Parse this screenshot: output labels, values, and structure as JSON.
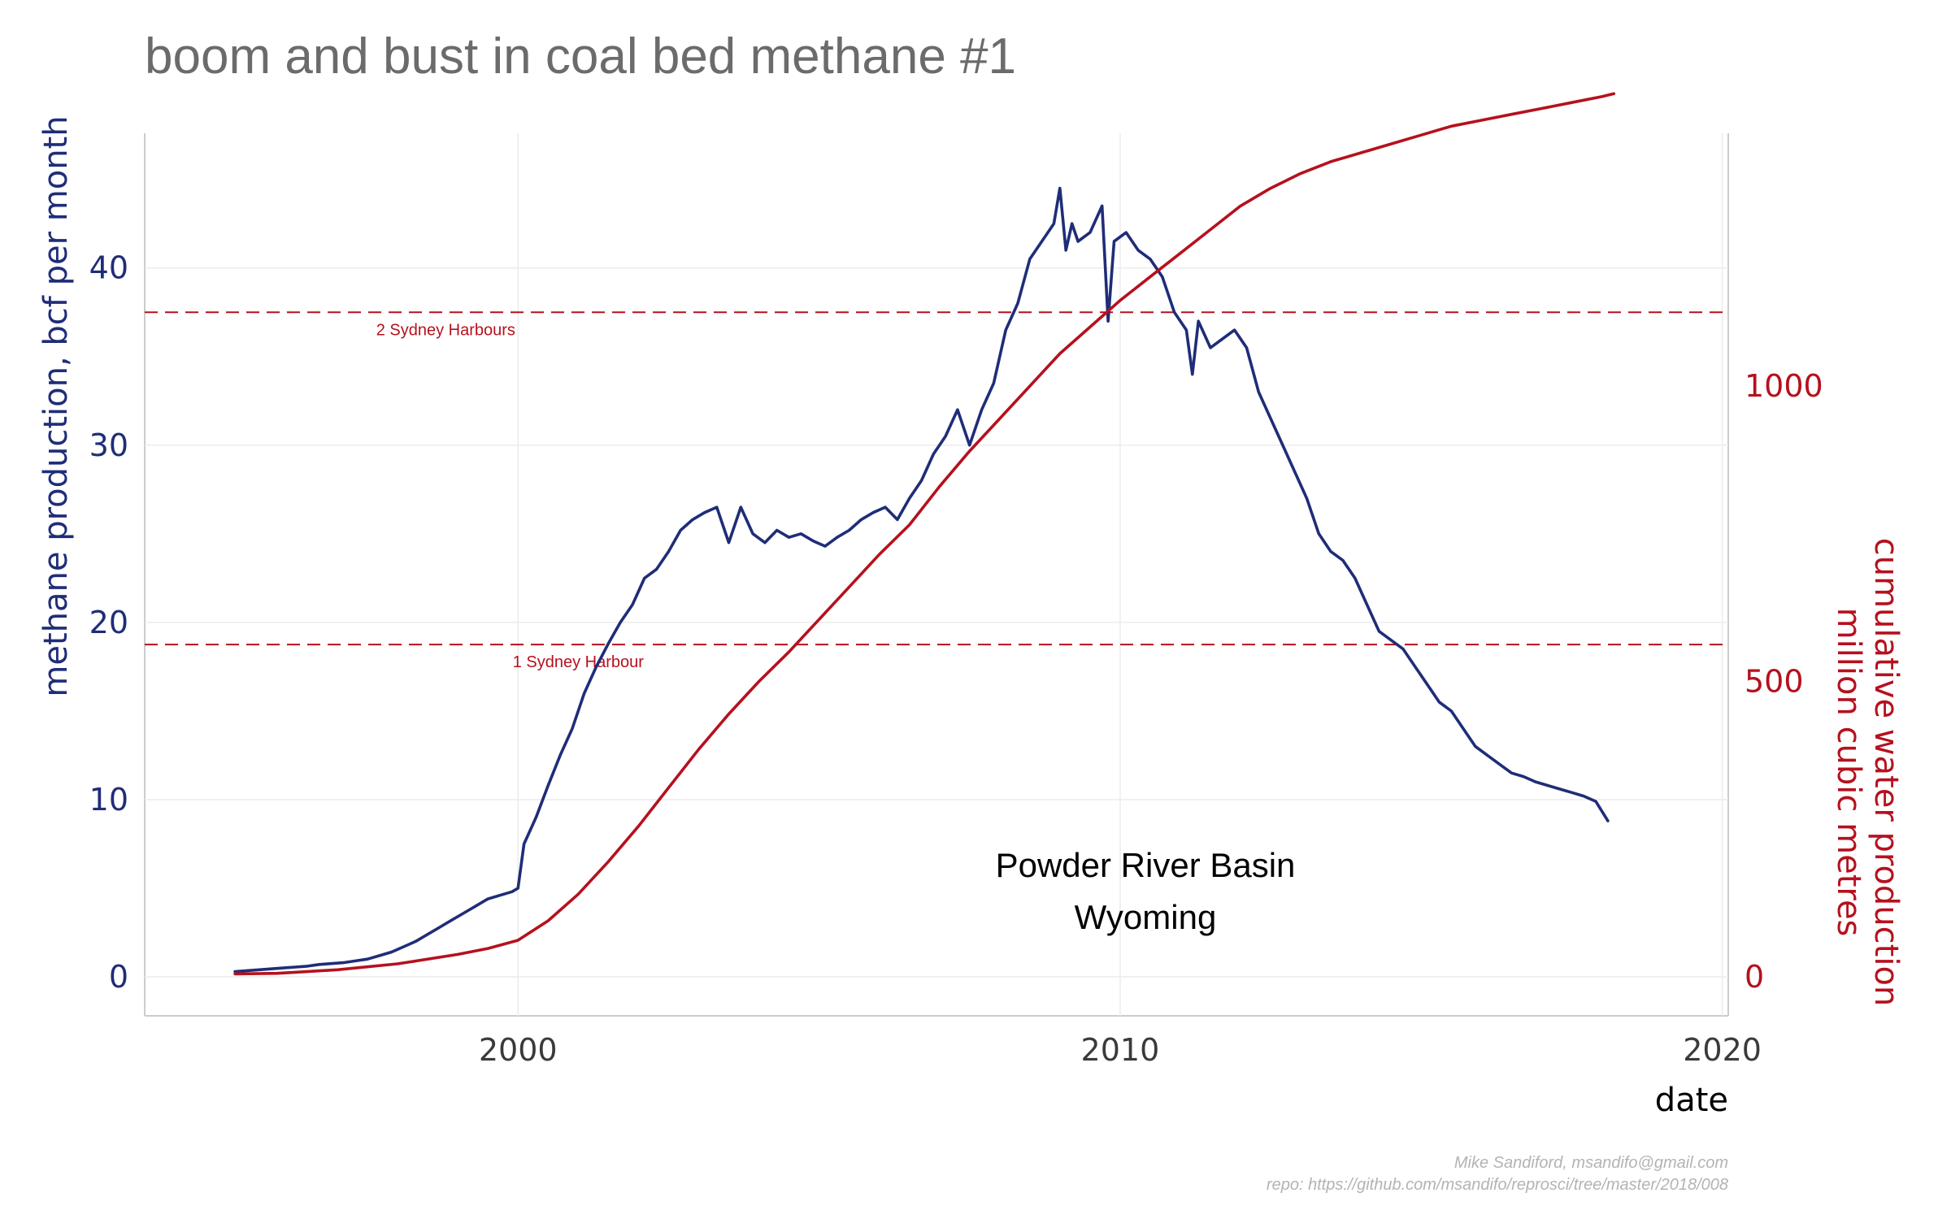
{
  "chart_data": {
    "type": "line",
    "title": "boom and bust in coal bed methane #1",
    "xlabel": "date",
    "ylabel_left": "methane production, bcf per month",
    "ylabel_right_lines": [
      "cumulative water production",
      "million cubic metres"
    ],
    "xlim": [
      1993.8,
      2020.1
    ],
    "ylim_left": [
      -2.2,
      47.6
    ],
    "ylim_right": [
      -66,
      1428
    ],
    "x_ticks": [
      2000,
      2010,
      2020
    ],
    "y_ticks_left": [
      0,
      10,
      20,
      30,
      40
    ],
    "y_ticks_right": [
      0,
      500,
      1000
    ],
    "grid": true,
    "reference_lines": [
      {
        "y": 18.75,
        "label": "1 Sydney Harbour",
        "label_x": 2001.0
      },
      {
        "y": 37.5,
        "label": "2 Sydney Harbours",
        "label_x": 1998.8
      }
    ],
    "annotation_lines": [
      "Powder River Basin",
      "Wyoming"
    ],
    "annotation_x": 2010.4,
    "annotation_y": [
      6.4,
      3.4
    ],
    "caption_lines": [
      "Mike Sandiford, msandifo@gmail.com",
      "repo: https://github.com/msandifo/reprosci/tree/master/2018/008"
    ],
    "colors": {
      "methane": "#1f2d78",
      "water": "#b5111e",
      "reference": "#b5111e",
      "grid": "#ececec"
    },
    "series": [
      {
        "axis": "left",
        "x": [
          1995.3,
          1995.5,
          1995.7,
          1995.9,
          1996.1,
          1996.3,
          1996.5,
          1996.7,
          1996.9,
          1997.1,
          1997.3,
          1997.5,
          1997.7,
          1997.9,
          1998.1,
          1998.3,
          1998.5,
          1998.7,
          1998.9,
          1999.1,
          1999.3,
          1999.5,
          1999.7,
          1999.9,
          2000.0,
          2000.1,
          2000.3,
          2000.5,
          2000.7,
          2000.9,
          2001.1,
          2001.3,
          2001.5,
          2001.7,
          2001.9,
          2002.1,
          2002.3,
          2002.5,
          2002.7,
          2002.9,
          2003.1,
          2003.3,
          2003.5,
          2003.7,
          2003.9,
          2004.1,
          2004.3,
          2004.5,
          2004.7,
          2004.9,
          2005.1,
          2005.3,
          2005.5,
          2005.7,
          2005.9,
          2006.1,
          2006.3,
          2006.5,
          2006.7,
          2006.9,
          2007.1,
          2007.3,
          2007.5,
          2007.7,
          2007.9,
          2008.1,
          2008.3,
          2008.5,
          2008.7,
          2008.9,
          2009.0,
          2009.1,
          2009.2,
          2009.3,
          2009.5,
          2009.7,
          2009.8,
          2009.9,
          2010.1,
          2010.3,
          2010.5,
          2010.7,
          2010.9,
          2011.1,
          2011.2,
          2011.3,
          2011.5,
          2011.7,
          2011.9,
          2012.1,
          2012.3,
          2012.5,
          2012.7,
          2012.9,
          2013.1,
          2013.3,
          2013.5,
          2013.7,
          2013.9,
          2014.1,
          2014.3,
          2014.5,
          2014.7,
          2014.9,
          2015.1,
          2015.3,
          2015.5,
          2015.7,
          2015.9,
          2016.1,
          2016.3,
          2016.5,
          2016.7,
          2016.9,
          2017.1,
          2017.3,
          2017.5,
          2017.7,
          2017.9,
          2018.1
        ],
        "y": [
          0.3,
          0.35,
          0.4,
          0.45,
          0.5,
          0.55,
          0.6,
          0.7,
          0.75,
          0.8,
          0.9,
          1.0,
          1.2,
          1.4,
          1.7,
          2.0,
          2.4,
          2.8,
          3.2,
          3.6,
          4.0,
          4.4,
          4.6,
          4.8,
          5.0,
          7.5,
          9.0,
          10.8,
          12.5,
          14.0,
          16.0,
          17.5,
          18.8,
          20.0,
          21.0,
          22.5,
          23.0,
          24.0,
          25.2,
          25.8,
          26.2,
          26.5,
          24.5,
          26.5,
          25.0,
          24.5,
          25.2,
          24.8,
          25.0,
          24.6,
          24.3,
          24.8,
          25.2,
          25.8,
          26.2,
          26.5,
          25.8,
          27.0,
          28.0,
          29.5,
          30.5,
          32.0,
          30.0,
          32.0,
          33.5,
          36.5,
          38.0,
          40.5,
          41.5,
          42.5,
          44.5,
          41.0,
          42.5,
          41.5,
          42.0,
          43.5,
          37.0,
          41.5,
          42.0,
          41.0,
          40.5,
          39.5,
          37.5,
          36.5,
          34.0,
          37.0,
          35.5,
          36.0,
          36.5,
          35.5,
          33.0,
          31.5,
          30.0,
          28.5,
          27.0,
          25.0,
          24.0,
          23.5,
          22.5,
          21.0,
          19.5,
          19.0,
          18.5,
          17.5,
          16.5,
          15.5,
          15.0,
          14.0,
          13.0,
          12.5,
          12.0,
          11.5,
          11.3,
          11.0,
          10.8,
          10.6,
          10.4,
          10.2,
          9.9,
          8.8
        ]
      },
      {
        "axis": "right",
        "x": [
          1995.3,
          1996.0,
          1997.0,
          1998.0,
          1999.0,
          1999.5,
          2000.0,
          2000.5,
          2001.0,
          2001.5,
          2002.0,
          2002.5,
          2003.0,
          2003.5,
          2004.0,
          2004.5,
          2005.0,
          2005.5,
          2006.0,
          2006.5,
          2007.0,
          2007.5,
          2008.0,
          2008.5,
          2009.0,
          2009.5,
          2010.0,
          2010.5,
          2011.0,
          2011.5,
          2012.0,
          2012.5,
          2013.0,
          2013.5,
          2014.0,
          2014.5,
          2015.0,
          2015.5,
          2016.0,
          2016.5,
          2017.0,
          2017.5,
          2018.0,
          2018.2
        ],
        "y": [
          5,
          6,
          12,
          22,
          38,
          48,
          62,
          95,
          140,
          195,
          255,
          320,
          385,
          445,
          500,
          550,
          605,
          660,
          715,
          765,
          830,
          890,
          945,
          1000,
          1055,
          1100,
          1145,
          1185,
          1225,
          1265,
          1305,
          1335,
          1360,
          1380,
          1395,
          1410,
          1425,
          1440,
          1450,
          1460,
          1470,
          1480,
          1490,
          1495
        ]
      }
    ]
  }
}
